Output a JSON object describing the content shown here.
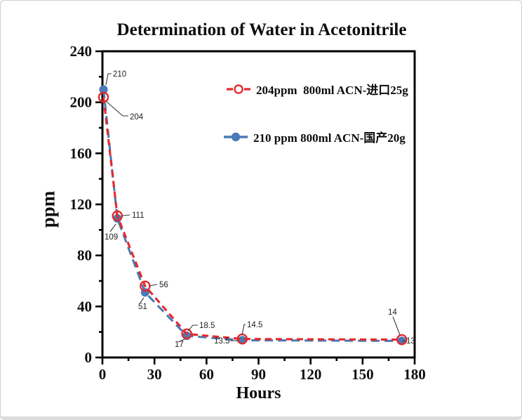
{
  "window": {
    "background": "#ffffff",
    "frame_color": "#cfcfcf"
  },
  "chart_data": {
    "type": "line",
    "title": "Determination of Water in Acetonitrile",
    "xlabel": "Hours",
    "ylabel": "ppm",
    "xlim": [
      0,
      180
    ],
    "ylim": [
      0,
      240
    ],
    "x_major_ticks": [
      0,
      30,
      60,
      90,
      120,
      150,
      180
    ],
    "x_minor_step": 15,
    "y_major_ticks": [
      0,
      40,
      80,
      120,
      160,
      200,
      240
    ],
    "y_minor_step": 20,
    "grid": false,
    "legend_position": "inside-upper-right",
    "axis_color": "#000000",
    "x": [
      0,
      8,
      24,
      48,
      80,
      172
    ],
    "series": [
      {
        "name": "204ppm  800ml ACN-进口25g",
        "color": "#e22a2d",
        "marker": "open-circle",
        "line_style": "dashed",
        "values": [
          204,
          111,
          56,
          18.5,
          14.5,
          14
        ],
        "point_labels": [
          "204",
          "111",
          "56",
          "18.5",
          "14.5",
          "14"
        ]
      },
      {
        "name": "210 ppm 800ml ACN-国产20g",
        "color": "#4a7ab8",
        "marker": "filled-circle",
        "line_style": "dashed",
        "values": [
          210,
          109,
          51,
          17,
          13.5,
          13
        ],
        "point_labels": [
          "210",
          "109",
          "51",
          "17",
          "13.5",
          "13"
        ]
      }
    ]
  }
}
